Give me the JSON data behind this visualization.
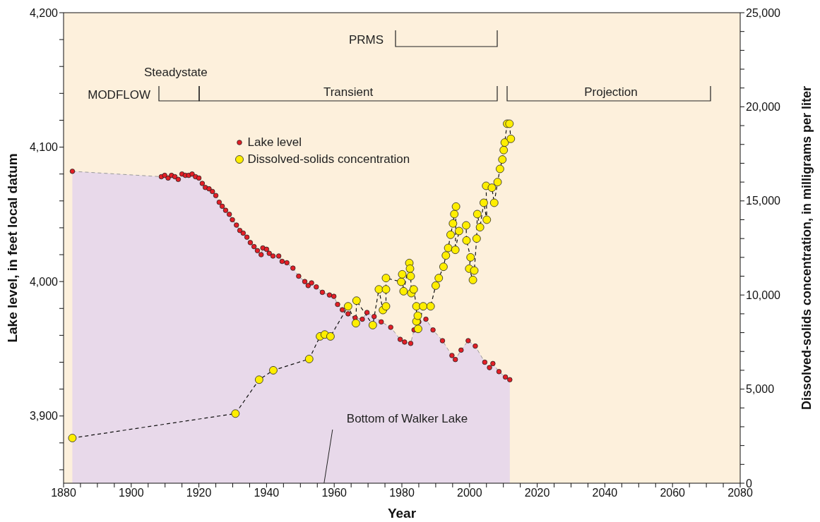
{
  "chart_data": {
    "type": "line",
    "xlabel": "Year",
    "ylabel": "Lake level, in feet local datum",
    "y2label": "Dissolved-solids concentration, in milligrams per liter",
    "xlim": [
      1880,
      2080
    ],
    "xticks": [
      1880,
      {
        "value": 1885,
        "label": null
      },
      {
        "value": 1890,
        "label": null
      },
      {
        "value": 1895,
        "label": null
      },
      1900,
      {
        "value": 1905,
        "label": null
      },
      {
        "value": 1910,
        "label": null
      },
      {
        "value": 1915,
        "label": null
      },
      1920,
      {
        "value": 1925,
        "label": null
      },
      {
        "value": 1930,
        "label": null
      },
      {
        "value": 1935,
        "label": null
      },
      1940,
      {
        "value": 1945,
        "label": null
      },
      {
        "value": 1950,
        "label": null
      },
      {
        "value": 1955,
        "label": null
      },
      1960,
      {
        "value": 1965,
        "label": null
      },
      {
        "value": 1970,
        "label": null
      },
      {
        "value": 1975,
        "label": null
      },
      1980,
      {
        "value": 1985,
        "label": null
      },
      {
        "value": 1990,
        "label": null
      },
      {
        "value": 1995,
        "label": null
      },
      2000,
      {
        "value": 2005,
        "label": null
      },
      {
        "value": 2010,
        "label": null
      },
      {
        "value": 2015,
        "label": null
      },
      2020,
      {
        "value": 2025,
        "label": null
      },
      {
        "value": 2030,
        "label": null
      },
      {
        "value": 2035,
        "label": null
      },
      2040,
      {
        "value": 2045,
        "label": null
      },
      {
        "value": 2050,
        "label": null
      },
      {
        "value": 2055,
        "label": null
      },
      2060,
      {
        "value": 2065,
        "label": null
      },
      {
        "value": 2070,
        "label": null
      },
      {
        "value": 2075,
        "label": null
      },
      2080
    ],
    "ylim": [
      3850,
      4200
    ],
    "yticks": [
      {
        "value": 3860,
        "label": null
      },
      {
        "value": 3880,
        "label": null
      },
      {
        "value": 3900,
        "label": "3,900"
      },
      {
        "value": 3920,
        "label": null
      },
      {
        "value": 3940,
        "label": null
      },
      {
        "value": 3960,
        "label": null
      },
      {
        "value": 3980,
        "label": null
      },
      {
        "value": 4000,
        "label": "4,000"
      },
      {
        "value": 4020,
        "label": null
      },
      {
        "value": 4040,
        "label": null
      },
      {
        "value": 4060,
        "label": null
      },
      {
        "value": 4080,
        "label": null
      },
      {
        "value": 4100,
        "label": "4,100"
      },
      {
        "value": 4120,
        "label": null
      },
      {
        "value": 4140,
        "label": null
      },
      {
        "value": 4160,
        "label": null
      },
      {
        "value": 4180,
        "label": null
      },
      {
        "value": 4200,
        "label": "4,200"
      }
    ],
    "y2lim": [
      0,
      25000
    ],
    "y2ticks": [
      0,
      {
        "value": 1000,
        "label": null
      },
      {
        "value": 2000,
        "label": null
      },
      {
        "value": 3000,
        "label": null
      },
      {
        "value": 4000,
        "label": null
      },
      {
        "value": 5000,
        "label": "5,000"
      },
      {
        "value": 6000,
        "label": null
      },
      {
        "value": 7000,
        "label": null
      },
      {
        "value": 8000,
        "label": null
      },
      {
        "value": 9000,
        "label": null
      },
      {
        "value": 10000,
        "label": "10,000"
      },
      {
        "value": 11000,
        "label": null
      },
      {
        "value": 12000,
        "label": null
      },
      {
        "value": 13000,
        "label": null
      },
      {
        "value": 14000,
        "label": null
      },
      {
        "value": 15000,
        "label": "15,000"
      },
      {
        "value": 16000,
        "label": null
      },
      {
        "value": 17000,
        "label": null
      },
      {
        "value": 18000,
        "label": null
      },
      {
        "value": 19000,
        "label": null
      },
      {
        "value": 20000,
        "label": "20,000"
      },
      {
        "value": 21000,
        "label": null
      },
      {
        "value": 22000,
        "label": null
      },
      {
        "value": 23000,
        "label": null
      },
      {
        "value": 24000,
        "label": null
      },
      {
        "value": 25000,
        "label": "25,000"
      }
    ],
    "legend": "top",
    "marker": "circle",
    "series": [
      {
        "name": "Lake level",
        "type": "area",
        "color": "#e41e26",
        "line_style": "dashed",
        "x": [
          1882.6,
          1908.9,
          1909.9,
          1910.9,
          1911.9,
          1912.9,
          1913.9,
          1915.0,
          1916.0,
          1917.0,
          1918.0,
          1919.0,
          1920.0,
          1921.0,
          1921.9,
          1923.0,
          1924.0,
          1925.0,
          1926.0,
          1926.9,
          1927.9,
          1929.0,
          1929.9,
          1931.1,
          1932.1,
          1933.1,
          1934.2,
          1935.2,
          1936.3,
          1937.3,
          1938.4,
          1938.9,
          1940.0,
          1940.8,
          1941.9,
          1943.6,
          1944.6,
          1946.0,
          1947.8,
          1949.5,
          1951.3,
          1952.3,
          1953.3,
          1954.7,
          1956.5,
          1958.6,
          1959.9,
          1961.0,
          1962.4,
          1964.1,
          1966.2,
          1968.3,
          1969.7,
          1971.8,
          1973.9,
          1976.7,
          1979.5,
          1980.8,
          1982.6,
          1983.6,
          1985.0,
          1987.1,
          1989.2,
          1992.0,
          1994.8,
          1995.8,
          1997.5,
          1999.6,
          2001.7,
          2004.5,
          2005.9,
          2006.9,
          2008.7,
          2010.6,
          2011.9
        ],
        "values": [
          4082,
          4078,
          4079,
          4077,
          4079,
          4078,
          4076,
          4080,
          4079,
          4079,
          4080,
          4078,
          4077,
          4073,
          4070,
          4069,
          4067,
          4064,
          4059,
          4056,
          4053,
          4050,
          4046,
          4042,
          4038,
          4036,
          4033,
          4029,
          4026,
          4023,
          4020,
          4025,
          4024,
          4021,
          4019,
          4019,
          4015,
          4014,
          4010,
          4004,
          4000,
          3997,
          3999,
          3996,
          3992,
          3990,
          3989,
          3983,
          3979,
          3976,
          3973,
          3972,
          3977,
          3974,
          3970,
          3966,
          3957,
          3955,
          3954,
          3964,
          3970,
          3972,
          3964,
          3956,
          3945,
          3942,
          3949,
          3956,
          3952,
          3940,
          3936,
          3939,
          3933,
          3929,
          3927
        ]
      },
      {
        "name": "Dissolved-solids concentration",
        "axis": "y2",
        "color": "#ffee00",
        "line_style": "dashed",
        "x": [
          1882.6,
          1930.8,
          1937.8,
          1942.0,
          1952.6,
          1955.8,
          1957.2,
          1958.9,
          1964.1,
          1966.4,
          1966.6,
          1971.4,
          1973.2,
          1974.4,
          1975.3,
          1975.3,
          1975.3,
          1979.8,
          1980.1,
          1980.5,
          1982.2,
          1982.4,
          1982.6,
          1982.8,
          1983.5,
          1984.3,
          1984.3,
          1984.7,
          1984.8,
          1986.3,
          1988.5,
          1990.0,
          1990.9,
          1992.3,
          1993.0,
          1993.7,
          1994.4,
          1995.1,
          1995.5,
          1996.0,
          1995.8,
          1996.9,
          1999.0,
          1999.1,
          2000.3,
          1999.9,
          2001.0,
          2001.4,
          2002.1,
          2002.3,
          2003.1,
          2004.2,
          2005.1,
          2004.9,
          2006.6,
          2007.3,
          2008.3,
          2009.0,
          2009.7,
          2010.1,
          2010.4,
          2011.1,
          2011.8,
          2012.2
        ],
        "values": [
          2400,
          3700,
          5500,
          6000,
          6600,
          7800,
          7900,
          7800,
          9400,
          8500,
          9700,
          8400,
          10300,
          9200,
          9400,
          10300,
          10900,
          10700,
          11100,
          10200,
          11700,
          11400,
          11000,
          10100,
          10300,
          9400,
          8600,
          8900,
          8200,
          9400,
          9400,
          10500,
          10900,
          11500,
          12100,
          12500,
          13200,
          13800,
          14300,
          14700,
          12400,
          13400,
          13700,
          12900,
          12000,
          11400,
          10800,
          11300,
          13000,
          14300,
          13600,
          14900,
          14000,
          15800,
          15700,
          14900,
          16000,
          16700,
          17200,
          17700,
          18100,
          19100,
          19100,
          18300
        ]
      }
    ],
    "annotations": [
      "MODFLOW",
      "Steadystate",
      "Transient",
      "Projection",
      "PRMS",
      {
        "text": "Bottom of Walker Lake",
        "x": 1957,
        "y": 3850
      }
    ]
  }
}
